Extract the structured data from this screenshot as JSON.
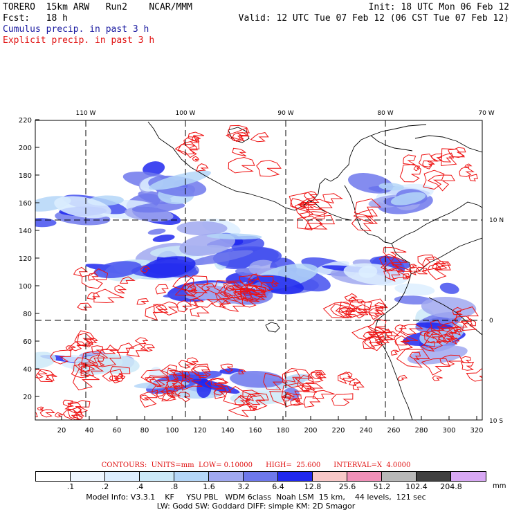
{
  "header": {
    "model": "TORERO  15km ARW   Run2    NCAR/MMM",
    "init": "Init: 18 UTC Mon 06 Feb 12",
    "fcst": "Fcst:   18 h",
    "valid": "Valid: 12 UTC Tue 07 Feb 12 (06 CST Tue 07 Feb 12)",
    "field1": "Cumulus precip. in past 3 h",
    "field2": "Explicit precip. in past 3 h"
  },
  "map": {
    "lon_labels": [
      "110 W",
      "100 W",
      "90 W",
      "80 W",
      "70 W"
    ],
    "lat_labels": [
      "10 N",
      "0",
      "10 S"
    ],
    "x_ticks": [
      "20",
      "40",
      "60",
      "80",
      "100",
      "120",
      "140",
      "160",
      "180",
      "200",
      "220",
      "240",
      "260",
      "280",
      "300",
      "320"
    ],
    "y_ticks": [
      "20",
      "40",
      "60",
      "80",
      "100",
      "120",
      "140",
      "160",
      "180",
      "200",
      "220"
    ],
    "colors": {
      "contour": "#ee1111",
      "coast": "#000000",
      "grid": "#000000"
    }
  },
  "contours": {
    "text": "CONTOURS:  UNITS=mm  LOW= 0.10000      HIGH=  25.600      INTERVAL=X  4.0000"
  },
  "colorbar": {
    "colors": [
      "#ffffff",
      "#eef6ff",
      "#ddeeff",
      "#cce9f8",
      "#b4d6f8",
      "#a0a8f0",
      "#6e78ec",
      "#2028ee",
      "#f8c8c8",
      "#f090b8",
      "#b8b8b8",
      "#404040",
      "#d8a8f4"
    ],
    "labels": [
      ".1",
      ".2",
      ".4",
      ".8",
      "1.6",
      "3.2",
      "6.4",
      "12.8",
      "25.6",
      "51.2",
      "102.4",
      "204.8"
    ],
    "unit": "mm"
  },
  "info": {
    "line1": "Model Info: V3.3.1    KF     YSU PBL   WDM 6class  Noah LSM  15 km,    44 levels,  121 sec",
    "line2": "LW: Godd SW: Goddard DIFF: simple KM: 2D Smagor"
  }
}
